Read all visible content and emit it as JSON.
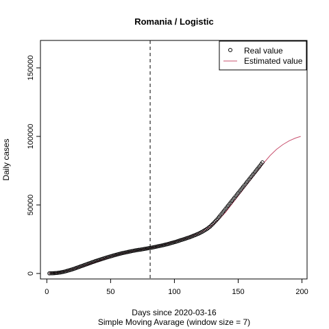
{
  "chart_data": {
    "type": "line",
    "title": "Romania / Logistic",
    "xlabel": "Days since 2020-03-16",
    "xsublabel": "Simple Moving Avarage (window size = 7)",
    "ylabel": "Daily cases",
    "xlim": [
      -5,
      204
    ],
    "ylim": [
      -4000,
      170000
    ],
    "x_ticks": [
      0,
      50,
      100,
      150,
      200
    ],
    "x_tick_labels": [
      "0",
      "50",
      "100",
      "150",
      "200"
    ],
    "y_ticks": [
      0,
      50000,
      100000,
      150000
    ],
    "y_tick_labels": [
      "0",
      "50000",
      "100000",
      "150000"
    ],
    "vline_x": 81,
    "vline_style": "dashed",
    "grid": false,
    "legend_position": "top-right",
    "legend": [
      {
        "label": "Real value",
        "symbol": "open-circle",
        "color": "#000000"
      },
      {
        "label": "Estimated value",
        "symbol": "line",
        "color": "#c8506e"
      }
    ],
    "series": [
      {
        "name": "Real value",
        "marker": "open-circle",
        "color": "#000000",
        "x": [
          2,
          5,
          8,
          11,
          14,
          17,
          20,
          23,
          26,
          29,
          32,
          35,
          38,
          41,
          44,
          47,
          50,
          53,
          56,
          59,
          62,
          65,
          68,
          71,
          74,
          77,
          80,
          83,
          86,
          89,
          92,
          95,
          98,
          101,
          104,
          107,
          110,
          113,
          116,
          119,
          122,
          125,
          128,
          131,
          134,
          137,
          140,
          143,
          146,
          149,
          152,
          155,
          158,
          161,
          164,
          167,
          169
        ],
        "y": [
          100,
          200,
          400,
          800,
          1400,
          2200,
          3000,
          4000,
          5000,
          6000,
          7000,
          8000,
          9000,
          9900,
          10800,
          11700,
          12500,
          13300,
          14100,
          14800,
          15400,
          16000,
          16600,
          17100,
          17500,
          18000,
          18500,
          19000,
          19600,
          20200,
          20800,
          21500,
          22300,
          23100,
          24000,
          24900,
          25800,
          26800,
          27900,
          29100,
          30500,
          32200,
          34200,
          37000,
          40000,
          43500,
          47000,
          50500,
          54000,
          57500,
          61000,
          64500,
          68000,
          71500,
          75000,
          78500,
          81000
        ]
      },
      {
        "name": "Estimated value",
        "marker": "line",
        "color": "#c8506e",
        "x": [
          2,
          10,
          20,
          30,
          40,
          50,
          60,
          70,
          80,
          90,
          100,
          110,
          120,
          125,
          130,
          135,
          140,
          145,
          150,
          155,
          160,
          165,
          170,
          175,
          180,
          185,
          190,
          195,
          199
        ],
        "y": [
          100,
          600,
          3000,
          6000,
          9000,
          12500,
          14800,
          16800,
          18400,
          20500,
          23100,
          25800,
          29600,
          32200,
          35500,
          39500,
          44500,
          50500,
          56500,
          62500,
          68500,
          74500,
          80500,
          86000,
          90500,
          94000,
          96800,
          98800,
          100000
        ]
      }
    ]
  }
}
